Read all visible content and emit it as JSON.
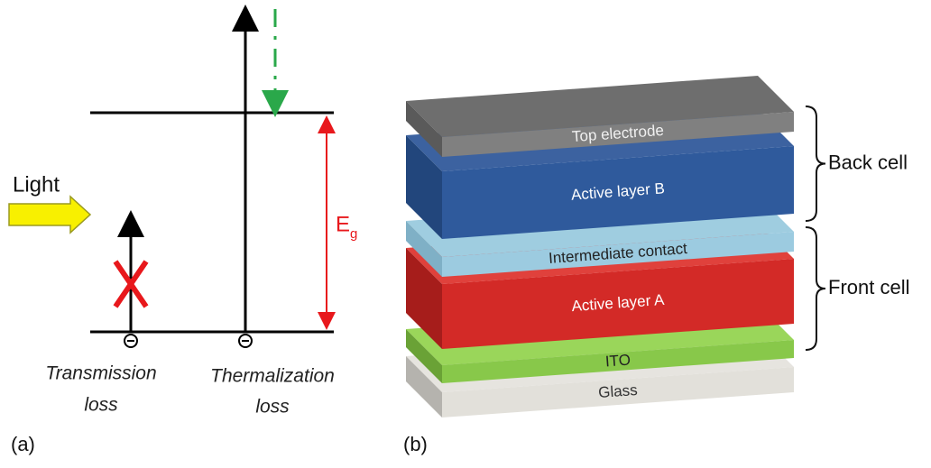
{
  "panel_a": {
    "label": "(a)",
    "light": "Light",
    "gap_symbol": "E",
    "gap_subscript": "g",
    "transmission_loss": [
      "Transmission",
      "loss"
    ],
    "thermalization_loss": [
      "Thermalization",
      "loss"
    ]
  },
  "panel_b": {
    "label": "(b)",
    "layers": [
      "Top electrode",
      "Active layer B",
      "Intermediate contact",
      "Active layer A",
      "ITO",
      "Glass"
    ],
    "groups": [
      "Back cell",
      "Front cell"
    ]
  }
}
